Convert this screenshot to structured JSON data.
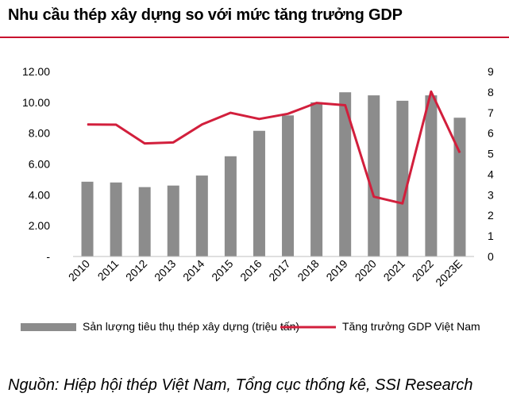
{
  "title": "Nhu cầu thép xây dựng so với mức tăng trưởng GDP",
  "source": "Nguồn: Hiệp hội thép Việt Nam, Tổng cục thống kê, SSI Research",
  "colors": {
    "bar": "#8c8c8c",
    "line": "#d21f3c",
    "accent": "#c8102e"
  },
  "chart_data": {
    "type": "bar",
    "categories": [
      "2010",
      "2011",
      "2012",
      "2013",
      "2014",
      "2015",
      "2016",
      "2017",
      "2018",
      "2019",
      "2020",
      "2021",
      "2022",
      "2023E"
    ],
    "series": [
      {
        "name": "Sản lượng tiêu thụ thép xây dựng (triệu tấn)",
        "type": "bar",
        "axis": "left",
        "values": [
          4.85,
          4.8,
          4.5,
          4.6,
          5.25,
          6.5,
          8.15,
          9.15,
          10.0,
          10.65,
          10.45,
          10.1,
          10.45,
          9.0
        ]
      },
      {
        "name": "Tăng trưởng GDP Việt Nam",
        "type": "line",
        "axis": "right",
        "values": [
          6.42,
          6.41,
          5.5,
          5.55,
          6.42,
          6.99,
          6.69,
          6.94,
          7.47,
          7.36,
          2.91,
          2.58,
          8.02,
          5.05
        ]
      }
    ],
    "y_left": {
      "ylim": [
        0,
        12
      ],
      "ticks": [
        "-",
        "2.00",
        "4.00",
        "6.00",
        "8.00",
        "10.00",
        "12.00"
      ]
    },
    "y_right": {
      "ylim": [
        0,
        9
      ],
      "ticks": [
        "0",
        "1",
        "2",
        "3",
        "4",
        "5",
        "6",
        "7",
        "8",
        "9"
      ]
    },
    "grid": false,
    "legend": "bottom"
  }
}
